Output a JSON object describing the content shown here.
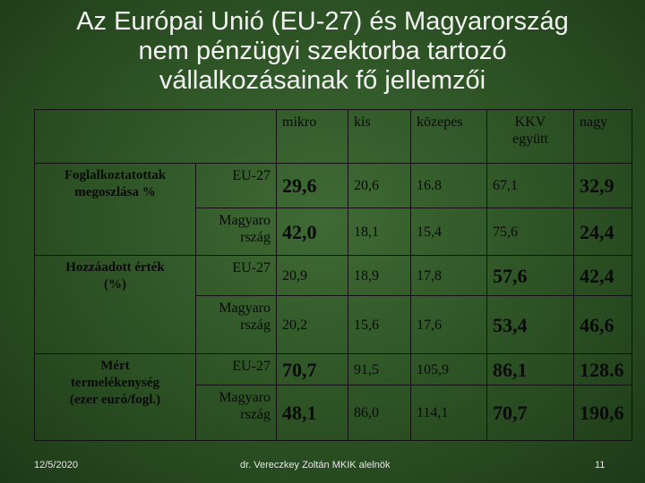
{
  "title": "Az Európai Unió (EU-27) és Magyarország\nnem pénzügyi szektorba tartozó\nvállalkozásainak fő jellemzői",
  "table": {
    "header": [
      "mikro",
      "kis",
      "közepes",
      "KKV\negyütt",
      "nagy"
    ],
    "groups": [
      "Foglalkoztatottak\nmegoszlása %",
      "Hozzáadott érték\n(%)",
      "Mért\ntermelékenység\n(ezer euró/fogl.)"
    ],
    "rows": [
      {
        "country": "EU-27",
        "cells": [
          "29,6",
          "20,6",
          "16.8",
          "67,1",
          "32,9"
        ]
      },
      {
        "country": "Magyaro\nrszág",
        "cells": [
          "42,0",
          "18,1",
          "15,4",
          "75,6",
          "24,4"
        ]
      },
      {
        "country": "EU-27",
        "cells": [
          "20,9",
          "18,9",
          "17,8",
          "57,6",
          "42,4"
        ]
      },
      {
        "country": "Magyaro\nrszág",
        "cells": [
          "20,2",
          "15,6",
          "17,6",
          "53,4",
          "46,6"
        ]
      },
      {
        "country": "EU-27",
        "cells": [
          "70,7",
          "91,5",
          "105,9",
          "86,1",
          "128.6"
        ]
      },
      {
        "country": "Magyaro\nrszág",
        "cells": [
          "48,1",
          "86,0",
          "114,1",
          "70,7",
          "190,6"
        ]
      }
    ]
  },
  "footer": {
    "date": "12/5/2020",
    "author": "dr. Vereczkey Zoltán MKIK alelnök",
    "page": "11"
  }
}
